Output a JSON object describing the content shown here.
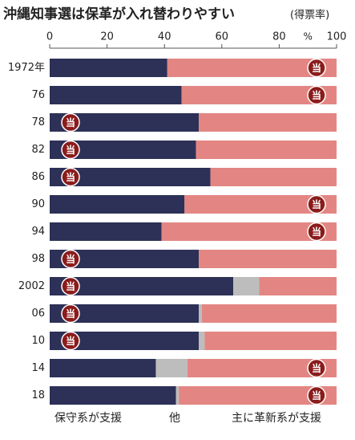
{
  "chart_data": {
    "type": "stacked-bar-horizontal",
    "title": "沖縄知事選は保革が入れ替わりやすい",
    "subtitle": "(得票率)",
    "unit": "%",
    "categories": [
      "1972年",
      "76",
      "78",
      "82",
      "86",
      "90",
      "94",
      "98",
      "2002",
      "06",
      "10",
      "14",
      "18"
    ],
    "series": [
      {
        "name": "保守系が支援",
        "color": "#2d3157",
        "values": [
          41,
          46,
          52,
          51,
          56,
          47,
          39,
          52,
          64,
          52,
          52,
          37,
          44
        ]
      },
      {
        "name": "他",
        "color": "#bdbdbd",
        "values": [
          0,
          0,
          0,
          0,
          0,
          0,
          0,
          0,
          9,
          1,
          2,
          11,
          1
        ]
      },
      {
        "name": "主に革新系が支援",
        "color": "#e38683",
        "values": [
          59,
          54,
          48,
          49,
          44,
          53,
          61,
          48,
          27,
          47,
          46,
          52,
          55
        ]
      }
    ],
    "winner_mark": "当",
    "winner_color": "#8b1c1c",
    "winners": [
      2,
      2,
      0,
      0,
      0,
      2,
      2,
      0,
      0,
      0,
      0,
      2,
      2
    ],
    "xlim": [
      0,
      100
    ],
    "xticks": [
      0,
      20,
      40,
      60,
      80,
      100
    ]
  }
}
